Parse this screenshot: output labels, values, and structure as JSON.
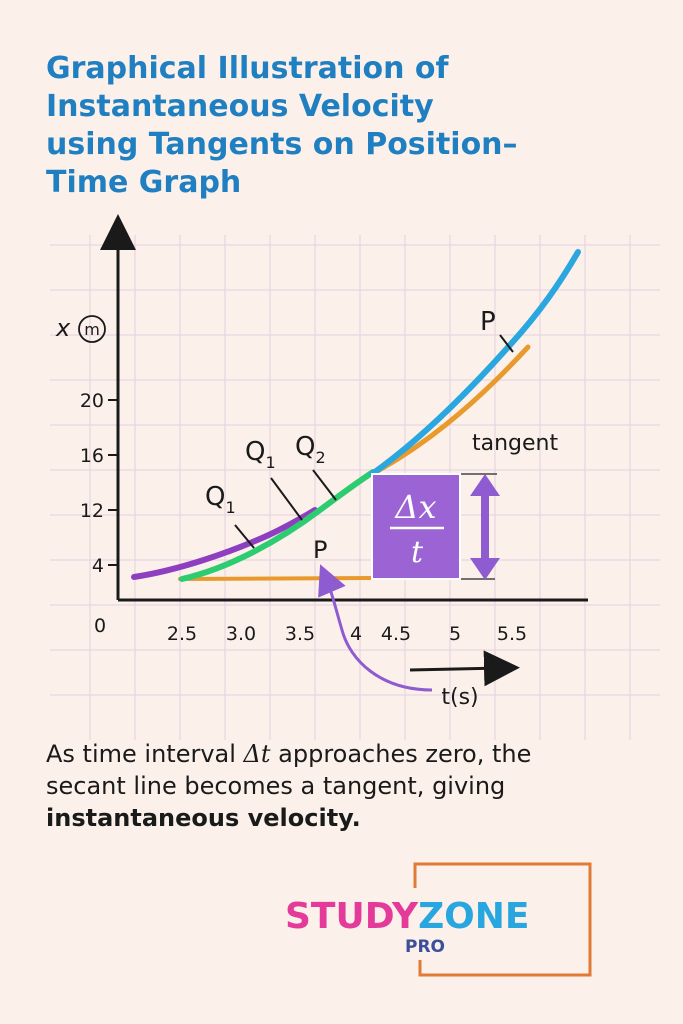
{
  "title_lines": [
    "Graphical Illustration of",
    "Instantaneous  Velocity",
    "using Tangents on Position–",
    "Time Graph"
  ],
  "chart_data": {
    "type": "line",
    "y_axis_label_parts": [
      "x",
      "m"
    ],
    "x_axis_label": "t(s)",
    "x_ticks": [
      "2.5",
      "3.0",
      "3.5",
      "4",
      "4.5",
      "5",
      "5.5"
    ],
    "y_ticks": [
      "20",
      "16",
      "12",
      "4"
    ],
    "origin_label": "0",
    "annotations": {
      "p_top": "P",
      "p_lower": "P",
      "q1_upper": "Q",
      "q1_upper_sub": "1",
      "q2": "Q",
      "q2_sub": "2",
      "q1_lower": "Q",
      "q1_lower_sub": "1",
      "tangent": "tangent",
      "box_numerator": "Δx",
      "box_denominator": "t"
    },
    "grid": true,
    "colors": {
      "curve": "#2aa7df",
      "secant_green": "#2ecc71",
      "secant_purple": "#8e3fc0",
      "tangent_orange": "#e89a2c",
      "box_fill": "#9b63d3",
      "arrow_purple": "#8f5bd0"
    }
  },
  "caption": {
    "part1": "As time interval ",
    "delta_t": "Δt",
    "part2": " approaches zero, the",
    "line2": "secant line becomes a tangent, giving",
    "bold": "instantaneous velocity",
    "end": "."
  },
  "logo": {
    "study": "STUDY",
    "zone": "ZONE",
    "pro": "PRO",
    "colors": {
      "study": "#e43a9a",
      "zone": "#28a6e0",
      "pro": "#3b4f9a",
      "frame": "#e07a36"
    }
  }
}
